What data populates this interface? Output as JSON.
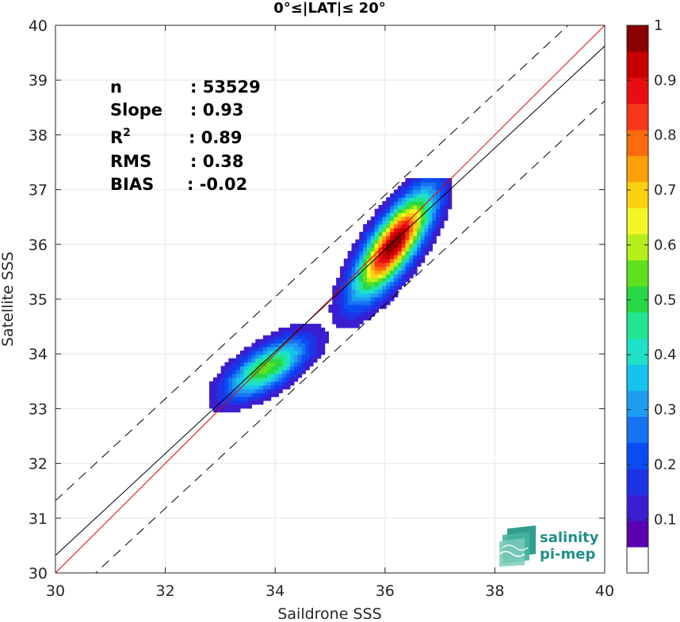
{
  "chart_data": {
    "type": "heatmap",
    "title": "0°≤|LAT|≤ 20°",
    "xlabel": "Saildrone SSS",
    "ylabel": "Satellite SSS",
    "xlim": [
      30,
      40
    ],
    "ylim": [
      30,
      40
    ],
    "xticks": [
      "30",
      "32",
      "34",
      "36",
      "38",
      "40"
    ],
    "yticks": [
      "30",
      "31",
      "32",
      "33",
      "34",
      "35",
      "36",
      "37",
      "38",
      "39",
      "40"
    ],
    "grid": true,
    "stats": [
      {
        "label": "n",
        "value": ": 53529"
      },
      {
        "label": "Slope",
        "value": ": 0.93"
      },
      {
        "label": "R",
        "sup": "2",
        "value": ": 0.89"
      },
      {
        "label": "RMS",
        "value": ": 0.38"
      },
      {
        "label": "BIAS",
        "value": ": -0.02"
      }
    ],
    "lines": [
      {
        "name": "identity",
        "color": "#e00000",
        "style": "solid",
        "slope": 1.0,
        "intercept": 0.0
      },
      {
        "name": "fit",
        "color": "#000000",
        "style": "solid",
        "slope": 0.93,
        "intercept": 2.42
      },
      {
        "name": "upper",
        "color": "#000000",
        "style": "dashed",
        "slope": 0.93,
        "intercept": 3.42
      },
      {
        "name": "lower",
        "color": "#000000",
        "style": "dashed",
        "slope": 0.93,
        "intercept": 1.42
      }
    ],
    "clusters": [
      {
        "name": "low-salinity cluster",
        "center": [
          33.85,
          33.75
        ],
        "cov": [
          [
            0.26,
            0.13
          ],
          [
            0.13,
            0.14
          ]
        ],
        "peak": 0.52
      },
      {
        "name": "high-salinity cluster",
        "center": [
          36.15,
          36.0
        ],
        "cov": [
          [
            0.22,
            0.23
          ],
          [
            0.23,
            0.4
          ]
        ],
        "peak": 1.0
      }
    ],
    "contour_levels": [
      0.05,
      0.1,
      0.15,
      0.2,
      0.25,
      0.3,
      0.35,
      0.4,
      0.45,
      0.5,
      0.55,
      0.6,
      0.65,
      0.7,
      0.75,
      0.8,
      0.85,
      0.9,
      0.95
    ],
    "colorbar": {
      "ticks": [
        "0.1",
        "0.2",
        "0.3",
        "0.4",
        "0.5",
        "0.6",
        "0.7",
        "0.8",
        "0.9",
        "1"
      ],
      "colors": [
        "#ffffff",
        "#5a00b0",
        "#3a1ed0",
        "#1d34e6",
        "#0a4df5",
        "#1772f4",
        "#1e9cf0",
        "#16c3ec",
        "#1fe0c8",
        "#22e58f",
        "#27d846",
        "#5ee01e",
        "#b5ef1b",
        "#f2f526",
        "#fbd10f",
        "#fda00a",
        "#fc6a0e",
        "#f5381a",
        "#e80d12",
        "#c80000",
        "#8b0000"
      ]
    }
  },
  "logo": {
    "line1": "salinity",
    "line2": "pi-mep"
  }
}
